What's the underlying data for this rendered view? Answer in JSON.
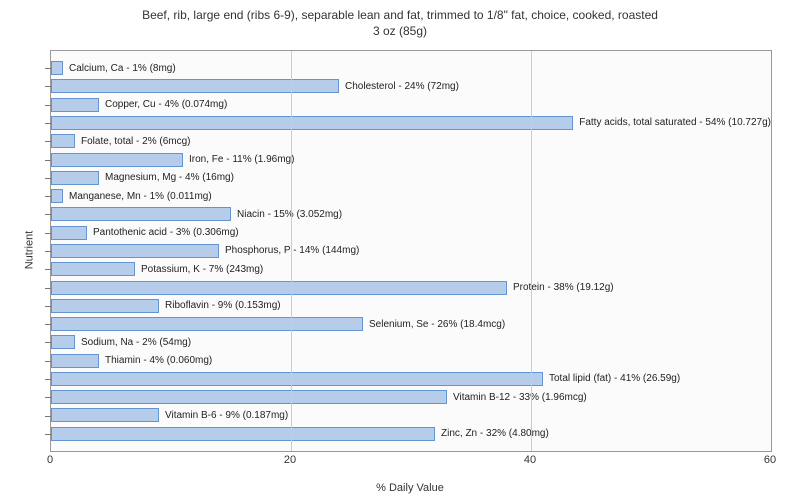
{
  "chart": {
    "type": "bar-horizontal",
    "title_line1": "Beef, rib, large end (ribs 6-9), separable lean and fat, trimmed to 1/8\" fat, choice, cooked, roasted",
    "title_line2": "3 oz (85g)",
    "title_fontsize": 12,
    "ylabel": "Nutrient",
    "xlabel": "% Daily Value",
    "label_fontsize": 11,
    "xlim": [
      0,
      60
    ],
    "xticks": [
      0,
      20,
      40,
      60
    ],
    "background_color": "#fbfbfb",
    "border_color": "#999999",
    "grid_color": "#cccccc",
    "bar_fill": "#b5cdeb",
    "bar_border": "#6495d0",
    "bar_label_fontsize": 10,
    "nutrients": [
      {
        "name": "Calcium, Ca",
        "pct": 1,
        "amount": "8mg"
      },
      {
        "name": "Cholesterol",
        "pct": 24,
        "amount": "72mg"
      },
      {
        "name": "Copper, Cu",
        "pct": 4,
        "amount": "0.074mg"
      },
      {
        "name": "Fatty acids, total saturated",
        "pct": 54,
        "amount": "10.727g"
      },
      {
        "name": "Folate, total",
        "pct": 2,
        "amount": "6mcg"
      },
      {
        "name": "Iron, Fe",
        "pct": 11,
        "amount": "1.96mg"
      },
      {
        "name": "Magnesium, Mg",
        "pct": 4,
        "amount": "16mg"
      },
      {
        "name": "Manganese, Mn",
        "pct": 1,
        "amount": "0.011mg"
      },
      {
        "name": "Niacin",
        "pct": 15,
        "amount": "3.052mg"
      },
      {
        "name": "Pantothenic acid",
        "pct": 3,
        "amount": "0.306mg"
      },
      {
        "name": "Phosphorus, P",
        "pct": 14,
        "amount": "144mg"
      },
      {
        "name": "Potassium, K",
        "pct": 7,
        "amount": "243mg"
      },
      {
        "name": "Protein",
        "pct": 38,
        "amount": "19.12g"
      },
      {
        "name": "Riboflavin",
        "pct": 9,
        "amount": "0.153mg"
      },
      {
        "name": "Selenium, Se",
        "pct": 26,
        "amount": "18.4mcg"
      },
      {
        "name": "Sodium, Na",
        "pct": 2,
        "amount": "54mg"
      },
      {
        "name": "Thiamin",
        "pct": 4,
        "amount": "0.060mg"
      },
      {
        "name": "Total lipid (fat)",
        "pct": 41,
        "amount": "26.59g"
      },
      {
        "name": "Vitamin B-12",
        "pct": 33,
        "amount": "1.96mcg"
      },
      {
        "name": "Vitamin B-6",
        "pct": 9,
        "amount": "0.187mg"
      },
      {
        "name": "Zinc, Zn",
        "pct": 32,
        "amount": "4.80mg"
      }
    ]
  }
}
